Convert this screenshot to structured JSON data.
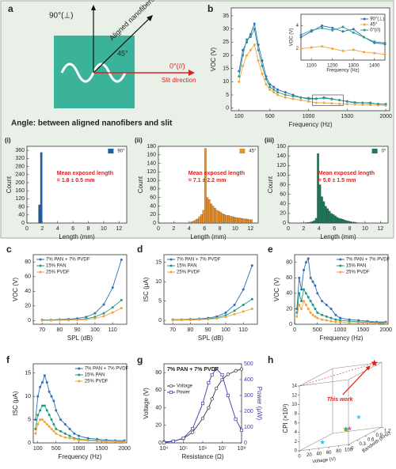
{
  "diagram": {
    "label": "a",
    "vertical": "90°(⊥)",
    "diagonal": "Aligned nanofibers direction",
    "diagonal_angle": "45°",
    "horizontal": "0°(//)",
    "horizontal_name": "Slit direction",
    "caption": "Angle: between aligned nanofibers and slit"
  },
  "chart_data": [
    {
      "type": "line",
      "label": "b",
      "xlabel": "Frequency (Hz)",
      "ylabel": "VOC (V)",
      "x": [
        100,
        150,
        200,
        250,
        300,
        350,
        400,
        450,
        500,
        550,
        600,
        700,
        800,
        900,
        1000,
        1100,
        1200,
        1300,
        1400,
        1500,
        1600,
        1700,
        1800,
        1900,
        2000
      ],
      "xlim": [
        0,
        2050
      ],
      "xticks": [
        100,
        500,
        1000,
        1500,
        2000
      ],
      "ylim": [
        -1,
        38
      ],
      "yticks": [
        0,
        5,
        10,
        15,
        20,
        25,
        30,
        35
      ],
      "series": [
        {
          "color": "#2f6fb5",
          "values": [
            14,
            22,
            25,
            28,
            32,
            24,
            18,
            12,
            9,
            8,
            7,
            6,
            5,
            4,
            3.5,
            3.5,
            4,
            3.5,
            3,
            2.5,
            2,
            2,
            2,
            1.5,
            1.5
          ]
        },
        {
          "color": "#f2a43a",
          "values": [
            10,
            16,
            20,
            22,
            24,
            18,
            13,
            9,
            7,
            6,
            5,
            4,
            3.5,
            3,
            2.5,
            2,
            2,
            1.8,
            1.6,
            1.5,
            1.4,
            1.3,
            1.2,
            1.1,
            1
          ]
        },
        {
          "color": "#2a9d8f",
          "values": [
            12,
            20,
            26,
            27,
            30,
            22,
            16,
            11,
            8,
            7,
            6,
            5,
            4.5,
            4,
            3.8,
            3.6,
            3.8,
            3.4,
            3,
            2.6,
            2.2,
            2,
            1.8,
            1.6,
            1.5
          ]
        }
      ]
    },
    {
      "type": "line",
      "xlabel": "Frequency (Hz)",
      "ylabel": "VOC (V)",
      "x": [
        1050,
        1100,
        1150,
        1200,
        1250,
        1300,
        1350,
        1400,
        1450
      ],
      "xlim": [
        1050,
        1450
      ],
      "xticks": [
        1100,
        1200,
        1300,
        1400
      ],
      "ylim": [
        1,
        5
      ],
      "yticks": [
        2,
        4
      ],
      "legend": "upper right",
      "series": [
        {
          "name": "90°(⊥)",
          "color": "#2f6fb5",
          "values": [
            3,
            3.5,
            4,
            3.8,
            3.5,
            3.7,
            3,
            2.5,
            2.4
          ]
        },
        {
          "name": "45°",
          "color": "#f2a43a",
          "values": [
            2,
            2.1,
            2.2,
            2,
            1.8,
            1.9,
            1.7,
            1.6,
            1.5
          ]
        },
        {
          "name": "0°(//)",
          "color": "#2a9d8f",
          "values": [
            3.2,
            3.6,
            3.8,
            3.6,
            3.9,
            3.4,
            3,
            2.6,
            2.5
          ]
        }
      ]
    },
    {
      "type": "histogram",
      "label": "(i)",
      "xlabel": "Length (mm)",
      "ylabel": "Count",
      "bins": [
        1.5,
        1.75,
        2
      ],
      "xlim": [
        0,
        13
      ],
      "xticks": [
        0,
        2,
        4,
        6,
        8,
        10,
        12
      ],
      "ylim": [
        0,
        380
      ],
      "yticks": [
        0,
        40,
        80,
        120,
        160,
        200,
        240,
        280,
        320,
        360
      ],
      "legend": "upper right",
      "annotations": [
        "Mean exposed length",
        "= 1.8 ± 0.5 mm"
      ],
      "annotation_color": "#e02020",
      "series": [
        {
          "name": "90°",
          "color": "#1f5fa8",
          "values": [
            90,
            350
          ]
        }
      ]
    },
    {
      "type": "histogram",
      "label": "(ii)",
      "xlabel": "Length (mm)",
      "ylabel": "Count",
      "bins": [
        4,
        4.25,
        4.5,
        4.75,
        5,
        5.25,
        5.5,
        5.75,
        6,
        6.25,
        6.5,
        6.75,
        7,
        7.25,
        7.5,
        7.75,
        8,
        8.25,
        8.5,
        8.75,
        9,
        9.25,
        9.5,
        9.75,
        10,
        10.25,
        10.5,
        10.75,
        11,
        11.25,
        11.5,
        11.75,
        12,
        12.25
      ],
      "xlim": [
        0,
        13
      ],
      "xticks": [
        0,
        2,
        4,
        6,
        8,
        10,
        12
      ],
      "ylim": [
        0,
        180
      ],
      "yticks": [
        0,
        20,
        40,
        60,
        80,
        100,
        120,
        140,
        160,
        180
      ],
      "legend": "upper right",
      "annotations": [
        "Mean exposed length",
        "= 7.1 ± 2.2 mm"
      ],
      "annotation_color": "#e02020",
      "series": [
        {
          "name": "45°",
          "color": "#e8912d",
          "values": [
            2,
            3,
            5,
            8,
            10,
            15,
            20,
            30,
            175,
            60,
            55,
            45,
            40,
            35,
            30,
            28,
            25,
            22,
            20,
            18,
            18,
            16,
            15,
            14,
            13,
            12,
            12,
            11,
            10,
            10,
            9,
            8,
            8
          ]
        }
      ]
    },
    {
      "type": "histogram",
      "label": "(iii)",
      "xlabel": "Length (mm)",
      "ylabel": "Count",
      "bins": [
        2,
        2.25,
        2.5,
        2.75,
        3,
        3.25,
        3.5,
        3.75,
        4,
        4.25,
        4.5,
        4.75,
        5,
        5.25,
        5.5,
        5.75,
        6,
        6.25,
        6.5,
        6.75,
        7,
        7.25,
        7.5,
        7.75,
        8,
        8.25,
        8.5,
        8.75,
        9
      ],
      "xlim": [
        0,
        13
      ],
      "xticks": [
        0,
        2,
        4,
        6,
        8,
        10,
        12
      ],
      "ylim": [
        0,
        160
      ],
      "yticks": [
        0,
        20,
        40,
        60,
        80,
        100,
        120,
        140,
        160
      ],
      "legend": "upper right",
      "annotations": [
        "Mean exposed length",
        "= 5.0 ± 1.5 mm"
      ],
      "annotation_color": "#e02020",
      "series": [
        {
          "name": "0°",
          "color": "#1f7a5c",
          "values": [
            0,
            1,
            1,
            2,
            3,
            5,
            10,
            145,
            80,
            55,
            45,
            35,
            30,
            25,
            20,
            18,
            15,
            12,
            10,
            9,
            8,
            6,
            5,
            4,
            3,
            2,
            2,
            1
          ]
        }
      ]
    },
    {
      "type": "line",
      "label": "c",
      "xlabel": "SPL (dB)",
      "ylabel": "VOC (V)",
      "x": [
        70,
        75,
        80,
        85,
        90,
        95,
        100,
        105,
        110,
        115
      ],
      "xlim": [
        65,
        118
      ],
      "xticks": [
        70,
        80,
        90,
        100,
        110
      ],
      "ylim": [
        -5,
        90
      ],
      "yticks": [
        0,
        20,
        40,
        60,
        80
      ],
      "legend": "upper left",
      "series": [
        {
          "name": "7% PAN + 7% PVDF",
          "color": "#2f6fb5",
          "values": [
            1,
            1,
            1.5,
            2,
            3,
            5,
            10,
            22,
            45,
            83
          ]
        },
        {
          "name": "15% PAN",
          "color": "#179c7d",
          "values": [
            0.5,
            0.5,
            1,
            1,
            1.5,
            2.5,
            5,
            10,
            18,
            28
          ]
        },
        {
          "name": "25% PVDF",
          "color": "#f2a43a",
          "values": [
            0.3,
            0.3,
            0.5,
            0.7,
            1,
            1.5,
            3,
            6,
            11,
            17
          ]
        }
      ]
    },
    {
      "type": "line",
      "label": "d",
      "xlabel": "SPL (dB)",
      "ylabel": "ISC (μA)",
      "x": [
        70,
        75,
        80,
        85,
        90,
        95,
        100,
        105,
        110,
        115
      ],
      "xlim": [
        65,
        118
      ],
      "xticks": [
        70,
        80,
        90,
        100,
        110
      ],
      "ylim": [
        -1,
        17
      ],
      "yticks": [
        0,
        5,
        10,
        15
      ],
      "legend": "upper left",
      "series": [
        {
          "name": "7% PAN + 7% PVDF",
          "color": "#2f6fb5",
          "values": [
            0.2,
            0.2,
            0.3,
            0.4,
            0.6,
            1,
            2,
            4,
            8,
            14.2
          ]
        },
        {
          "name": "15% PAN",
          "color": "#179c7d",
          "values": [
            0.1,
            0.1,
            0.2,
            0.3,
            0.4,
            0.7,
            1.3,
            2.5,
            4,
            5.5
          ]
        },
        {
          "name": "25% PVDF",
          "color": "#f2a43a",
          "values": [
            0.05,
            0.1,
            0.1,
            0.2,
            0.3,
            0.5,
            0.9,
            1.6,
            2.3,
            3
          ]
        }
      ]
    },
    {
      "type": "line",
      "label": "e",
      "xlabel": "Frequency (Hz)",
      "ylabel": "VOC (V)",
      "x": [
        50,
        100,
        150,
        200,
        250,
        300,
        350,
        400,
        450,
        500,
        600,
        700,
        800,
        900,
        1000,
        1200,
        1400,
        1600,
        1800,
        2000
      ],
      "xlim": [
        0,
        2050
      ],
      "xticks": [
        0,
        500,
        1000,
        1500,
        2000
      ],
      "ylim": [
        0,
        90
      ],
      "yticks": [
        0,
        20,
        40,
        60,
        80
      ],
      "legend": "upper right",
      "series": [
        {
          "name": "7% PAN + 7% PVDF",
          "color": "#2f6fb5",
          "values": [
            20,
            60,
            45,
            70,
            80,
            85,
            60,
            55,
            50,
            40,
            30,
            25,
            20,
            12,
            8,
            6,
            5,
            4,
            3,
            3
          ]
        },
        {
          "name": "15% PAN",
          "color": "#179c7d",
          "values": [
            15,
            40,
            30,
            45,
            40,
            35,
            30,
            25,
            20,
            15,
            12,
            10,
            8,
            6,
            5,
            4,
            3,
            3,
            2,
            2
          ]
        },
        {
          "name": "25% PVDF",
          "color": "#f2a43a",
          "values": [
            10,
            25,
            20,
            30,
            25,
            20,
            15,
            12,
            10,
            8,
            6,
            5,
            4,
            3,
            3,
            2,
            2,
            2,
            1,
            1
          ]
        }
      ]
    },
    {
      "type": "line",
      "label": "f",
      "xlabel": "Frequency (Hz)",
      "ylabel": "ISC (μA)",
      "x": [
        50,
        100,
        150,
        200,
        250,
        300,
        350,
        400,
        450,
        500,
        600,
        700,
        800,
        900,
        1000,
        1200,
        1400,
        1600,
        1800,
        2000
      ],
      "xlim": [
        0,
        2050
      ],
      "xticks": [
        100,
        500,
        1000,
        1500,
        2000
      ],
      "ylim": [
        0,
        17
      ],
      "yticks": [
        0,
        5,
        10,
        15
      ],
      "legend": "upper right",
      "series": [
        {
          "name": "7% PAN + 7% PVDF",
          "color": "#2f6fb5",
          "values": [
            5,
            10,
            12,
            13,
            14.5,
            13,
            11,
            10,
            9,
            7,
            5,
            4,
            3,
            2,
            1.5,
            1,
            0.8,
            0.6,
            0.5,
            0.5
          ]
        },
        {
          "name": "15% PAN",
          "color": "#179c7d",
          "values": [
            3,
            6,
            7,
            8,
            8,
            7,
            6,
            5,
            4,
            3,
            2.5,
            2,
            1.5,
            1,
            0.8,
            0.6,
            0.5,
            0.4,
            0.3,
            0.3
          ]
        },
        {
          "name": "25% PVDF",
          "color": "#f2a43a",
          "values": [
            2,
            4,
            5,
            5,
            4.5,
            4,
            3.5,
            3,
            2.5,
            2,
            1.5,
            1.2,
            1,
            0.8,
            0.6,
            0.5,
            0.4,
            0.3,
            0.3,
            0.2
          ]
        }
      ]
    },
    {
      "type": "line",
      "label": "g",
      "xlabel": "Resistance (Ω)",
      "ylabel": "Voltage (V)",
      "y2label": "Power (μW)",
      "xscale": "log",
      "x": [
        10000,
        30000,
        100000,
        300000,
        1000000,
        2000000,
        3000000,
        5000000,
        10000000,
        20000000,
        50000000,
        100000000
      ],
      "xlim": [
        10000,
        100000000
      ],
      "xticks": [
        {
          "value": 10000,
          "label": "10⁴"
        },
        {
          "value": 100000,
          "label": "10⁵"
        },
        {
          "value": 1000000,
          "label": "10⁶"
        },
        {
          "value": 10000000,
          "label": "10⁷"
        },
        {
          "value": 100000000,
          "label": "10⁸"
        }
      ],
      "ylim": [
        0,
        90
      ],
      "yticks": [
        0,
        20,
        40,
        60,
        80
      ],
      "y2lim": [
        0,
        500
      ],
      "y2ticks": [
        0,
        100,
        200,
        300,
        400,
        500
      ],
      "legend": "center left",
      "annotations": [
        "7% PAN + 7% PVDF"
      ],
      "annotation_color": "#222222",
      "series": [
        {
          "name": "Voltage",
          "color": "#333333",
          "marker": "open-circle",
          "values": [
            1,
            2,
            5,
            12,
            28,
            40,
            50,
            62,
            72,
            78,
            82,
            84
          ]
        },
        {
          "name": "Power",
          "color": "#3a3ab0",
          "marker": "open-square",
          "axis": "y2",
          "values": [
            2,
            10,
            30,
            90,
            250,
            380,
            430,
            470,
            430,
            300,
            150,
            80
          ]
        }
      ]
    },
    {
      "type": "scatter3d",
      "label": "h",
      "xlabel": "Voltage (V)",
      "ylabel": "Bandwith (KHz)",
      "zlabel": "CPI (×10³)",
      "annotations": [
        "This work"
      ],
      "annotation_color": "#e02020",
      "xlim": [
        0,
        100
      ],
      "xticks": [
        0,
        20,
        40,
        60,
        80,
        100
      ],
      "ylim": [
        0,
        1.2
      ],
      "yticks": [
        0,
        0.3,
        0.6,
        0.9,
        1.2
      ],
      "zlim": [
        0,
        14
      ],
      "zticks": [
        0,
        2,
        4,
        6,
        8,
        10,
        12,
        14
      ],
      "x": [
        85,
        45,
        40,
        30,
        60,
        70,
        50
      ],
      "y": [
        1.2,
        0.9,
        1.1,
        0.3,
        0.6,
        0.9,
        0.8
      ],
      "z": [
        14,
        1,
        0.8,
        0.5,
        2,
        3.5,
        1.5
      ],
      "colors": [
        "#e02020",
        "#f5a623",
        "#e060c0",
        "#30c0e0",
        "#f08030",
        "#40c8f0",
        "#30c060"
      ]
    }
  ]
}
